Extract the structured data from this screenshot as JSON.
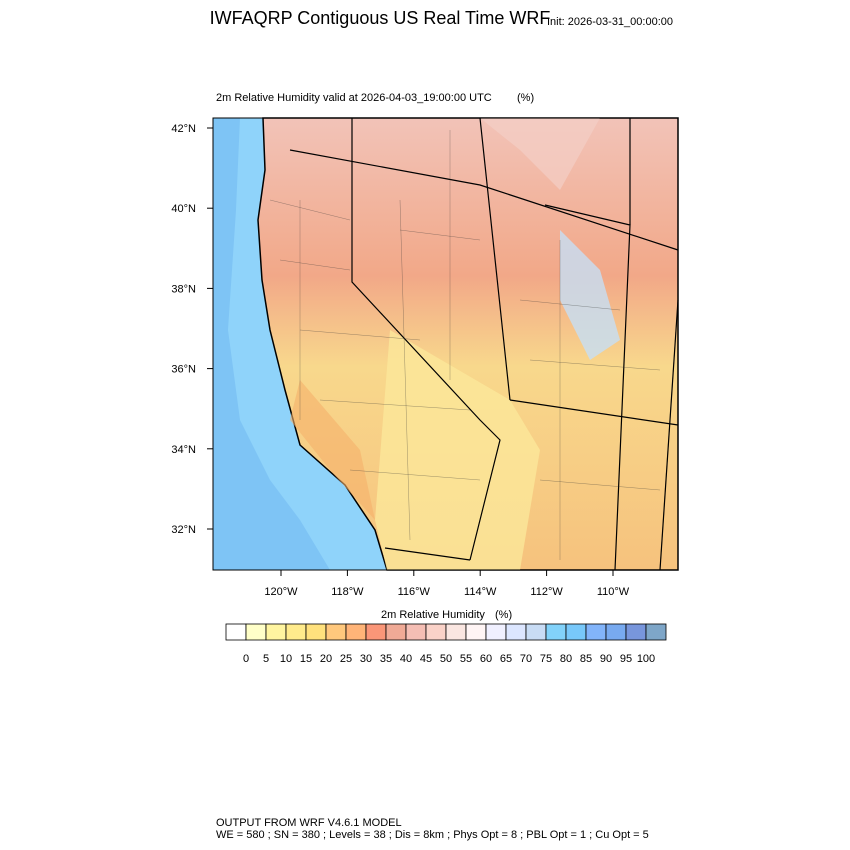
{
  "header": {
    "title": "IWFAQRP Contiguous US Real Time WRF",
    "init": "Init: 2026-03-31_00:00:00"
  },
  "map": {
    "subtitle": "2m Relative Humidity valid at 2026-04-03_19:00:00 UTC",
    "units": "(%)",
    "lat_labels": [
      "42°N",
      "40°N",
      "38°N",
      "36°N",
      "34°N",
      "32°N"
    ],
    "lon_labels": [
      "120°W",
      "118°W",
      "116°W",
      "114°W",
      "112°W",
      "110°W"
    ]
  },
  "colorbar": {
    "title": "2m Relative Humidity",
    "units": "(%)",
    "labels": [
      0,
      5,
      10,
      15,
      20,
      25,
      30,
      35,
      40,
      45,
      50,
      55,
      60,
      65,
      70,
      75,
      80,
      85,
      90,
      95,
      100
    ],
    "colors": [
      "#ffffff",
      "#ffffc8",
      "#fff5a0",
      "#ffeb8c",
      "#ffe17d",
      "#ffc87d",
      "#ffb478",
      "#fa9678",
      "#f0aa96",
      "#f5beb4",
      "#fad2c8",
      "#fae6e1",
      "#fff5f5",
      "#f0f0ff",
      "#dce6ff",
      "#c8dcf5",
      "#82d2fa",
      "#78c8fa",
      "#82b4fa",
      "#78aaf0",
      "#7896dc",
      "#7ea6c8"
    ]
  },
  "footer": {
    "line1": "OUTPUT FROM WRF V4.6.1 MODEL",
    "line2": "WE = 580 ; SN = 380 ; Levels = 38 ; Dis = 8km ; Phys Opt = 8 ; PBL Opt = 1 ; Cu Opt = 5"
  }
}
